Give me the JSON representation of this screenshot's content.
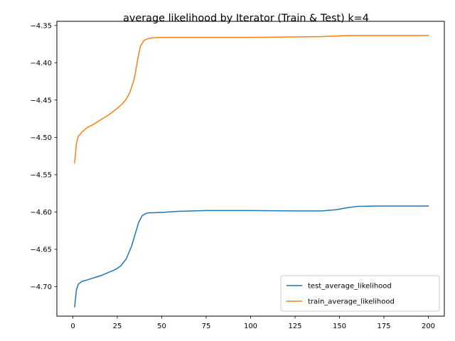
{
  "chart_data": {
    "type": "line",
    "title": "average likelihood by Iterator (Train & Test) k=4",
    "xlabel": "",
    "ylabel": "",
    "xlim": [
      -9,
      209
    ],
    "ylim": [
      -4.7395,
      -4.3445
    ],
    "xticks": [
      0,
      25,
      50,
      75,
      100,
      125,
      150,
      175,
      200
    ],
    "yticks": [
      -4.7,
      -4.65,
      -4.6,
      -4.55,
      -4.5,
      -4.45,
      -4.4,
      -4.35
    ],
    "xtick_labels": [
      "0",
      "25",
      "50",
      "75",
      "100",
      "125",
      "150",
      "175",
      "200"
    ],
    "ytick_labels": [
      "−4.70",
      "−4.65",
      "−4.60",
      "−4.55",
      "−4.50",
      "−4.45",
      "−4.40",
      "−4.35"
    ],
    "grid": false,
    "legend_position": "lower-right",
    "series": [
      {
        "name": "test_average_likelihood",
        "color": "#1f77b4",
        "x": [
          1,
          2,
          3,
          5,
          8,
          12,
          16,
          20,
          24,
          27,
          30,
          33,
          35,
          37,
          39,
          41,
          43,
          45,
          50,
          60,
          75,
          100,
          125,
          140,
          148,
          155,
          160,
          170,
          200
        ],
        "y": [
          -4.727,
          -4.704,
          -4.697,
          -4.693,
          -4.691,
          -4.688,
          -4.685,
          -4.681,
          -4.677,
          -4.672,
          -4.663,
          -4.646,
          -4.63,
          -4.614,
          -4.605,
          -4.602,
          -4.601,
          -4.601,
          -4.6005,
          -4.599,
          -4.598,
          -4.598,
          -4.5985,
          -4.5985,
          -4.597,
          -4.594,
          -4.5925,
          -4.592,
          -4.592
        ]
      },
      {
        "name": "train_average_likelihood",
        "color": "#ff7f0e",
        "x": [
          1,
          2,
          3,
          5,
          8,
          12,
          16,
          20,
          24,
          27,
          30,
          32,
          34,
          35,
          36,
          37,
          38,
          40,
          42,
          45,
          50,
          75,
          100,
          125,
          140,
          150,
          155,
          160,
          175,
          200
        ],
        "y": [
          -4.534,
          -4.508,
          -4.499,
          -4.493,
          -4.487,
          -4.482,
          -4.476,
          -4.47,
          -4.463,
          -4.457,
          -4.449,
          -4.44,
          -4.426,
          -4.416,
          -4.402,
          -4.389,
          -4.378,
          -4.37,
          -4.368,
          -4.3665,
          -4.366,
          -4.366,
          -4.366,
          -4.3655,
          -4.365,
          -4.364,
          -4.3635,
          -4.3635,
          -4.3635,
          -4.3635
        ]
      }
    ]
  }
}
